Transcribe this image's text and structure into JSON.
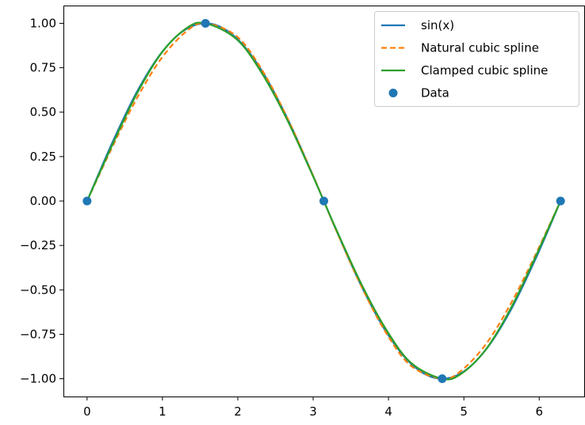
{
  "chart_data": {
    "type": "line",
    "title": "",
    "xlabel": "",
    "ylabel": "",
    "xlim": [
      -0.314,
      6.597
    ],
    "ylim": [
      -1.1,
      1.1
    ],
    "x_ticks": [
      0,
      1,
      2,
      3,
      4,
      5,
      6
    ],
    "x_tick_labels": [
      "0",
      "1",
      "2",
      "3",
      "4",
      "5",
      "6"
    ],
    "y_ticks": [
      1.0,
      0.75,
      0.5,
      0.25,
      0.0,
      -0.25,
      -0.5,
      -0.75,
      -1.0
    ],
    "y_tick_labels": [
      "1.00",
      "0.75",
      "0.50",
      "0.25",
      "0.00",
      "−0.25",
      "−0.50",
      "−0.75",
      "−1.00"
    ],
    "grid": false,
    "legend_position": "top-right",
    "series": [
      {
        "name": "sin(x)",
        "style": "solid",
        "color": "#1f77b4",
        "x": [
          0,
          0.3307,
          0.6614,
          0.9921,
          1.3228,
          1.6535,
          1.9842,
          2.3149,
          2.6456,
          2.9762,
          3.3069,
          3.6376,
          3.9683,
          4.299,
          4.6297,
          4.9604,
          5.2911,
          5.6218,
          5.9525,
          6.2832
        ],
        "y": [
          0,
          0.3247,
          0.6142,
          0.837,
          0.9694,
          0.9966,
          0.9158,
          0.7357,
          0.4759,
          0.1646,
          -0.1646,
          -0.4759,
          -0.7357,
          -0.9158,
          -0.9966,
          -0.9694,
          -0.837,
          -0.6142,
          -0.3247,
          0
        ]
      },
      {
        "name": "Natural cubic spline",
        "style": "dashed",
        "color": "#ff7f0e",
        "x": [
          0,
          0.3307,
          0.6614,
          0.9921,
          1.3228,
          1.5708,
          1.9842,
          2.3149,
          2.6456,
          2.9762,
          3.1416,
          3.3069,
          3.6376,
          3.9683,
          4.299,
          4.7124,
          4.9604,
          5.2911,
          5.6218,
          5.9525,
          6.2832
        ],
        "y": [
          0,
          0.3005,
          0.5784,
          0.8063,
          0.9563,
          1.0,
          0.9276,
          0.7424,
          0.4783,
          0.1662,
          0,
          -0.1662,
          -0.4783,
          -0.7424,
          -0.9276,
          -1.0,
          -0.9563,
          -0.8063,
          -0.5784,
          -0.3005,
          0
        ]
      },
      {
        "name": "Clamped cubic spline",
        "style": "solid",
        "color": "#2ca02c",
        "x": [
          0,
          0.3307,
          0.6614,
          0.9921,
          1.3228,
          1.5708,
          1.9842,
          2.3149,
          2.6456,
          2.9762,
          3.1416,
          3.3069,
          3.6376,
          3.9683,
          4.299,
          4.7124,
          4.9604,
          5.2911,
          5.6218,
          5.9525,
          6.2832
        ],
        "y": [
          0,
          0.3122,
          0.6045,
          0.8354,
          0.9735,
          1.0,
          0.9104,
          0.7226,
          0.4651,
          0.1603,
          0,
          -0.1603,
          -0.4651,
          -0.7226,
          -0.9104,
          -1.0,
          -0.9735,
          -0.8354,
          -0.6045,
          -0.3122,
          0
        ]
      },
      {
        "name": "Data",
        "style": "markers",
        "color": "#1f77b4",
        "x": [
          0,
          1.5708,
          3.1416,
          4.7124,
          6.2832
        ],
        "y": [
          0,
          1,
          0,
          -1,
          0
        ]
      }
    ]
  }
}
